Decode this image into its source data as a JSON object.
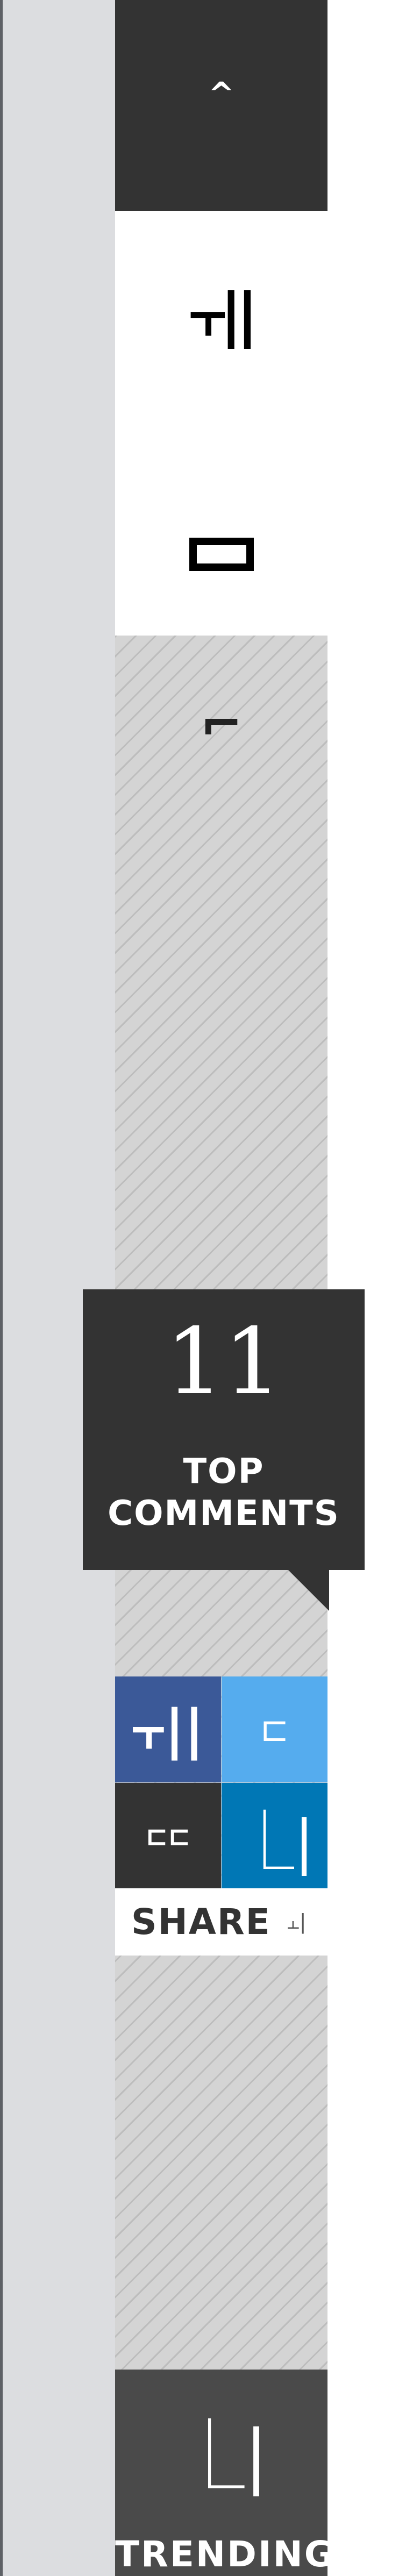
{
  "rail": {
    "top_icon": "^",
    "mid_icon_1": "⫟||",
    "hatch_icon": "⌐"
  },
  "comments": {
    "count": "11",
    "label_line1": "TOP",
    "label_line2": "COMMENTS"
  },
  "share": {
    "tiles": {
      "facebook": "⫟||",
      "twitter": "⊏",
      "email": "⊏⊏",
      "linkedin": "⎿|"
    },
    "label": "SHARE",
    "count_icon": "⫠|"
  },
  "trending": {
    "icon": "⎿|",
    "label": "TRENDING"
  },
  "colors": {
    "dark": "#333333",
    "facebook": "#3b5998",
    "twitter": "#55acee",
    "linkedin": "#0077b5",
    "trending": "#4a4a4a",
    "strip": "#dcdde0"
  }
}
